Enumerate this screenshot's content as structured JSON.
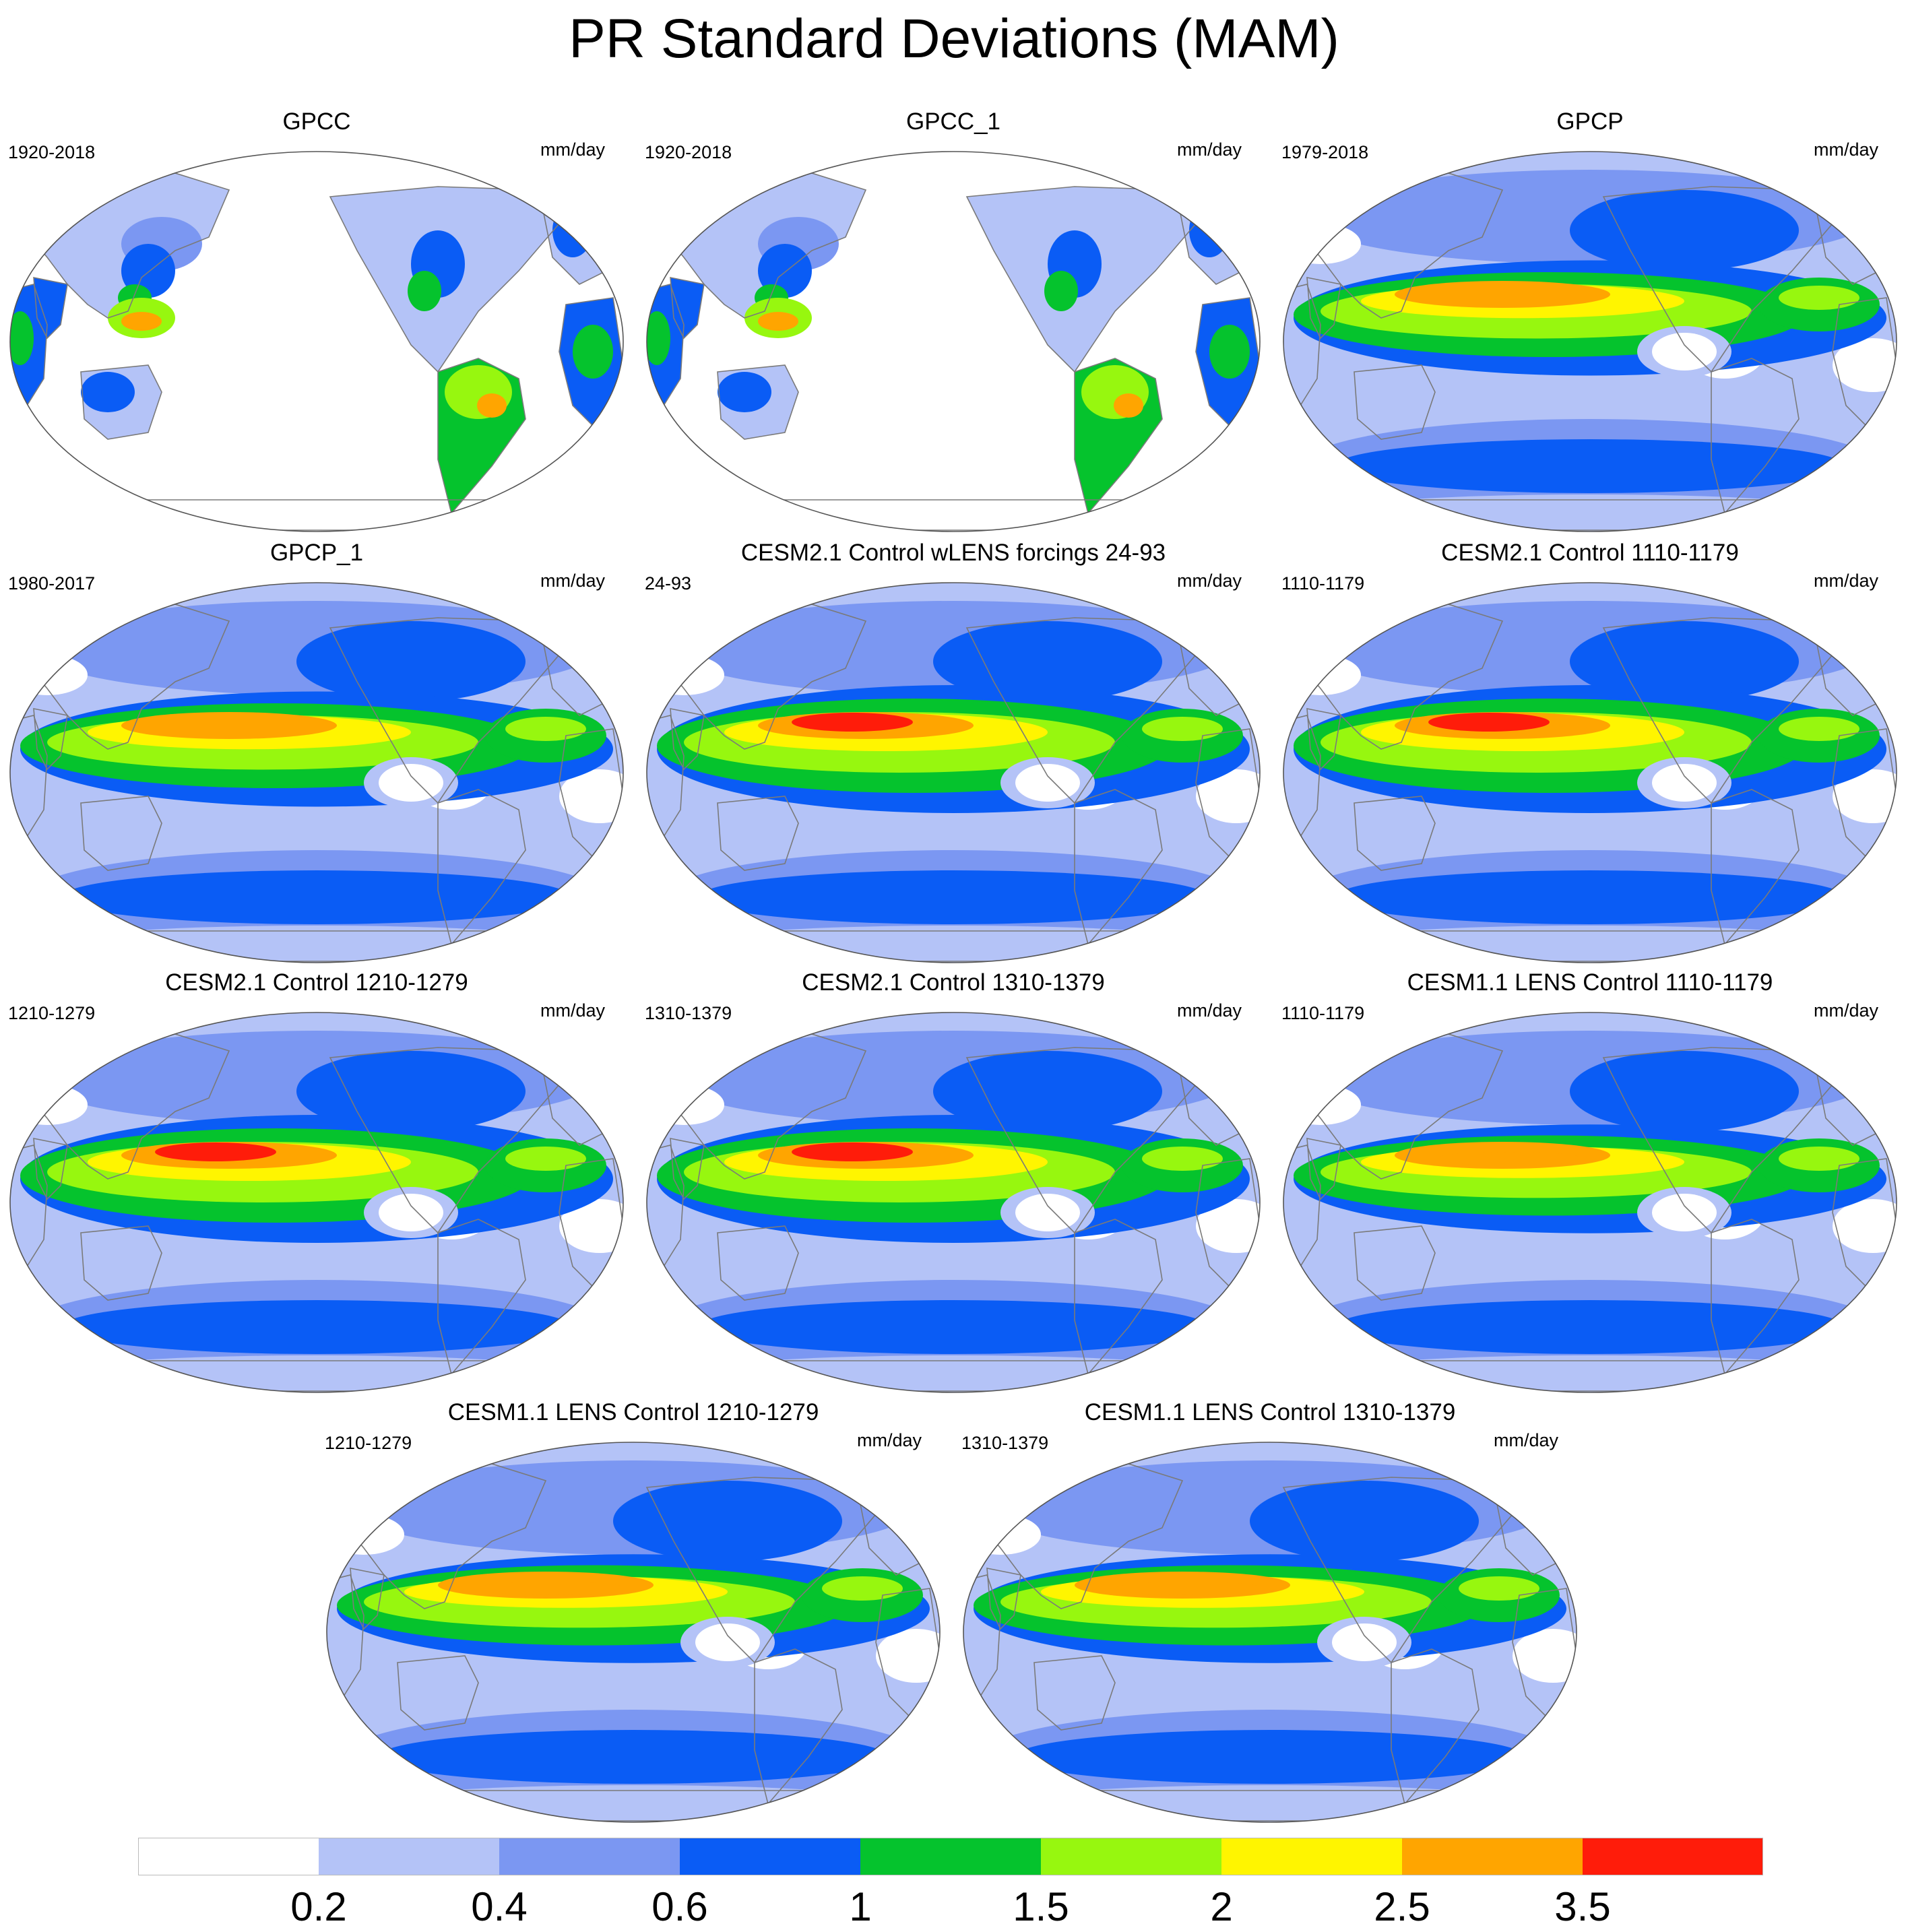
{
  "title": "PR Standard Deviations (MAM)",
  "units": "mm/day",
  "panels": [
    {
      "title": "GPCC",
      "period": "1920-2018",
      "kind": "land"
    },
    {
      "title": "GPCC_1",
      "period": "1920-2018",
      "kind": "land"
    },
    {
      "title": "GPCP",
      "period": "1979-2018",
      "kind": "obs"
    },
    {
      "title": "GPCP_1",
      "period": "1980-2017",
      "kind": "obs"
    },
    {
      "title": "CESM2.1 Control wLENS forcings 24-93",
      "period": "24-93",
      "kind": "cesm2"
    },
    {
      "title": "CESM2.1 Control 1110-1179",
      "period": "1110-1179",
      "kind": "cesm2"
    },
    {
      "title": "CESM2.1 Control 1210-1279",
      "period": "1210-1279",
      "kind": "cesm2"
    },
    {
      "title": "CESM2.1 Control 1310-1379",
      "period": "1310-1379",
      "kind": "cesm2"
    },
    {
      "title": "CESM1.1 LENS Control 1110-1179",
      "period": "1110-1179",
      "kind": "cesm1"
    },
    {
      "title": "CESM1.1 LENS Control 1210-1279",
      "period": "1210-1279",
      "kind": "cesm1"
    },
    {
      "title": "CESM1.1 LENS Control 1310-1379",
      "period": "1310-1379",
      "kind": "cesm1"
    }
  ],
  "colorbar": {
    "labels": [
      "0.2",
      "0.4",
      "0.6",
      "1",
      "1.5",
      "2",
      "2.5",
      "3.5"
    ],
    "colors": [
      "#ffffff",
      "#b4c3f7",
      "#7b97f2",
      "#0a5cf5",
      "#05c32d",
      "#97f70f",
      "#fff500",
      "#ffa500",
      "#ff1c0a"
    ]
  }
}
